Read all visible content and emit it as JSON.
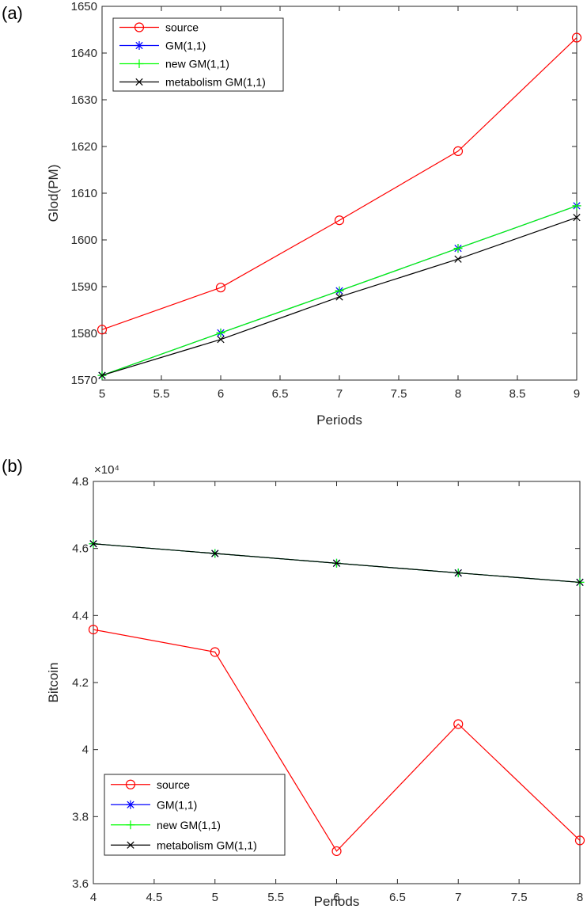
{
  "chart_data": [
    {
      "panel_label": "(a)",
      "type": "line",
      "title": "",
      "xlabel": "Periods",
      "ylabel": "Glod(PM)",
      "xlim": [
        5,
        9
      ],
      "ylim": [
        1570,
        1650
      ],
      "xticks": [
        5,
        5.5,
        6,
        6.5,
        7,
        7.5,
        8,
        8.5,
        9
      ],
      "xtick_labels": [
        "5",
        "5.5",
        "6",
        "6.5",
        "7",
        "7.5",
        "8",
        "8.5",
        "9"
      ],
      "yticks": [
        1570,
        1580,
        1590,
        1600,
        1610,
        1620,
        1630,
        1640,
        1650
      ],
      "ytick_labels": [
        "1570",
        "1580",
        "1590",
        "1600",
        "1610",
        "1620",
        "1630",
        "1640",
        "1650"
      ],
      "y_multiplier": "",
      "grid": false,
      "legend_position": "top-left",
      "x": [
        5,
        6,
        7,
        8,
        9
      ],
      "series": [
        {
          "name": "source",
          "color": "#ff0000",
          "marker": "circle",
          "values": [
            1580.8,
            1589.8,
            1604.2,
            1619.0,
            1643.3
          ]
        },
        {
          "name": "GM(1,1)",
          "color": "#0000ff",
          "marker": "star",
          "values": [
            1571.0,
            1580.1,
            1589.1,
            1598.2,
            1607.3
          ]
        },
        {
          "name": "new GM(1,1)",
          "color": "#00ff00",
          "marker": "plus",
          "values": [
            1571.0,
            1580.1,
            1589.1,
            1598.2,
            1607.3
          ]
        },
        {
          "name": "metabolism GM(1,1)",
          "color": "#000000",
          "marker": "x",
          "values": [
            1571.0,
            1578.7,
            1587.8,
            1595.9,
            1604.8
          ]
        }
      ]
    },
    {
      "panel_label": "(b)",
      "type": "line",
      "title": "",
      "xlabel": "Periods",
      "ylabel": "Bitcoin",
      "xlim": [
        4,
        8
      ],
      "ylim": [
        3.6,
        4.8
      ],
      "xticks": [
        4,
        4.5,
        5,
        5.5,
        6,
        6.5,
        7,
        7.5,
        8
      ],
      "xtick_labels": [
        "4",
        "4.5",
        "5",
        "5.5",
        "6",
        "6.5",
        "7",
        "7.5",
        "8"
      ],
      "yticks": [
        3.6,
        3.8,
        4.0,
        4.2,
        4.4,
        4.6,
        4.8
      ],
      "ytick_labels": [
        "3.6",
        "3.8",
        "4",
        "4.2",
        "4.4",
        "4.6",
        "4.8"
      ],
      "y_multiplier": "×10⁴",
      "grid": false,
      "legend_position": "bottom-left",
      "x": [
        4,
        5,
        6,
        7,
        8
      ],
      "series": [
        {
          "name": "source",
          "color": "#ff0000",
          "marker": "circle",
          "values": [
            4.358,
            4.291,
            3.697,
            4.076,
            3.729
          ]
        },
        {
          "name": "GM(1,1)",
          "color": "#0000ff",
          "marker": "star",
          "values": [
            4.614,
            4.585,
            4.556,
            4.527,
            4.499
          ]
        },
        {
          "name": "new GM(1,1)",
          "color": "#00ff00",
          "marker": "plus",
          "values": [
            4.614,
            4.585,
            4.556,
            4.527,
            4.499
          ]
        },
        {
          "name": "metabolism GM(1,1)",
          "color": "#000000",
          "marker": "x",
          "values": [
            4.614,
            4.585,
            4.556,
            4.527,
            4.499
          ]
        }
      ]
    }
  ]
}
